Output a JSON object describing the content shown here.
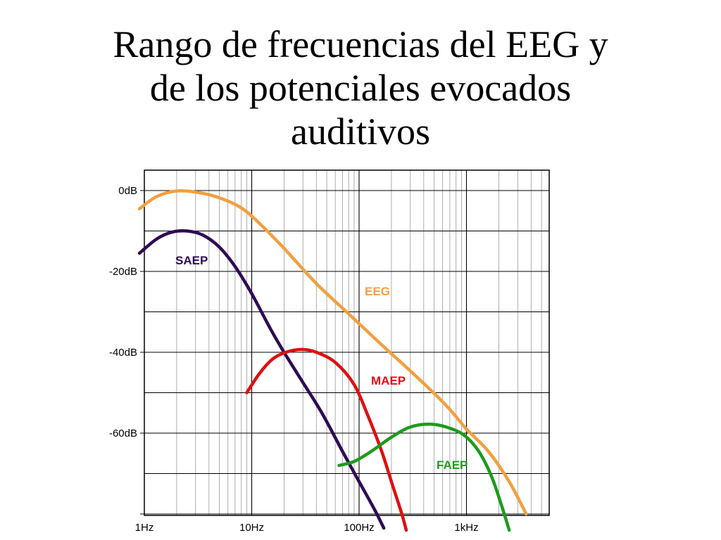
{
  "slide": {
    "title_lines": [
      "Rango de frecuencias del EEG y",
      "de los potenciales evocados",
      "auditivos"
    ]
  },
  "chart_data": {
    "type": "line",
    "title": "",
    "xlabel": "",
    "ylabel": "",
    "x_scale": "log",
    "xlim_hz": [
      1,
      4000
    ],
    "ylim_db": [
      -85,
      5
    ],
    "x_tick_labels": [
      "1Hz",
      "10Hz",
      "100Hz",
      "1kHz"
    ],
    "x_tick_values_hz": [
      1,
      10,
      100,
      1000
    ],
    "y_tick_labels": [
      "0dB",
      "-20dB",
      "-40dB",
      "-60dB"
    ],
    "y_tick_values_db": [
      0,
      -20,
      -40,
      -60
    ],
    "grid": true,
    "series": [
      {
        "name": "EEG",
        "color": "#F0A040",
        "points": [
          [
            0.9,
            -4.5
          ],
          [
            1.3,
            -1.5
          ],
          [
            2.0,
            -0.1
          ],
          [
            3.2,
            -0.5
          ],
          [
            5.0,
            -1.8
          ],
          [
            8.0,
            -4.3
          ],
          [
            12.0,
            -8.3
          ],
          [
            20.0,
            -14.3
          ],
          [
            40.0,
            -23.0
          ],
          [
            80.0,
            -30.5
          ],
          [
            160.0,
            -38.0
          ],
          [
            320.0,
            -45.3
          ],
          [
            640.0,
            -53.0
          ],
          [
            1000.0,
            -59.0
          ],
          [
            1600.0,
            -64.5
          ],
          [
            2500.0,
            -72.0
          ],
          [
            3600.0,
            -80.0
          ]
        ]
      },
      {
        "name": "SAEP",
        "color": "#2E0A55",
        "points": [
          [
            0.9,
            -15.5
          ],
          [
            1.3,
            -12.0
          ],
          [
            1.8,
            -10.3
          ],
          [
            2.5,
            -10.0
          ],
          [
            3.5,
            -11.0
          ],
          [
            5.0,
            -14.0
          ],
          [
            7.0,
            -18.8
          ],
          [
            10.0,
            -25.5
          ],
          [
            15.0,
            -34.3
          ],
          [
            20.0,
            -40.0
          ],
          [
            30.0,
            -47.5
          ],
          [
            45.0,
            -55.0
          ],
          [
            70.0,
            -64.5
          ],
          [
            100.0,
            -72.0
          ],
          [
            140.0,
            -79.0
          ],
          [
            170.0,
            -83.5
          ]
        ]
      },
      {
        "name": "MAEP",
        "color": "#DD1111",
        "points": [
          [
            9.0,
            -50.0
          ],
          [
            12.0,
            -45.0
          ],
          [
            16.0,
            -41.5
          ],
          [
            22.0,
            -39.8
          ],
          [
            30.0,
            -39.3
          ],
          [
            40.0,
            -40.0
          ],
          [
            60.0,
            -42.5
          ],
          [
            90.0,
            -48.0
          ],
          [
            120.0,
            -55.5
          ],
          [
            160.0,
            -64.0
          ],
          [
            200.0,
            -72.0
          ],
          [
            250.0,
            -80.0
          ],
          [
            275.0,
            -84.0
          ]
        ]
      },
      {
        "name": "FAEP",
        "color": "#1E9A1E",
        "points": [
          [
            65.0,
            -68.0
          ],
          [
            90.0,
            -67.0
          ],
          [
            130.0,
            -64.5
          ],
          [
            200.0,
            -61.0
          ],
          [
            300.0,
            -58.5
          ],
          [
            450.0,
            -57.8
          ],
          [
            650.0,
            -58.5
          ],
          [
            950.0,
            -60.5
          ],
          [
            1300.0,
            -64.5
          ],
          [
            1700.0,
            -70.5
          ],
          [
            2100.0,
            -77.5
          ],
          [
            2500.0,
            -84.0
          ]
        ]
      }
    ]
  }
}
